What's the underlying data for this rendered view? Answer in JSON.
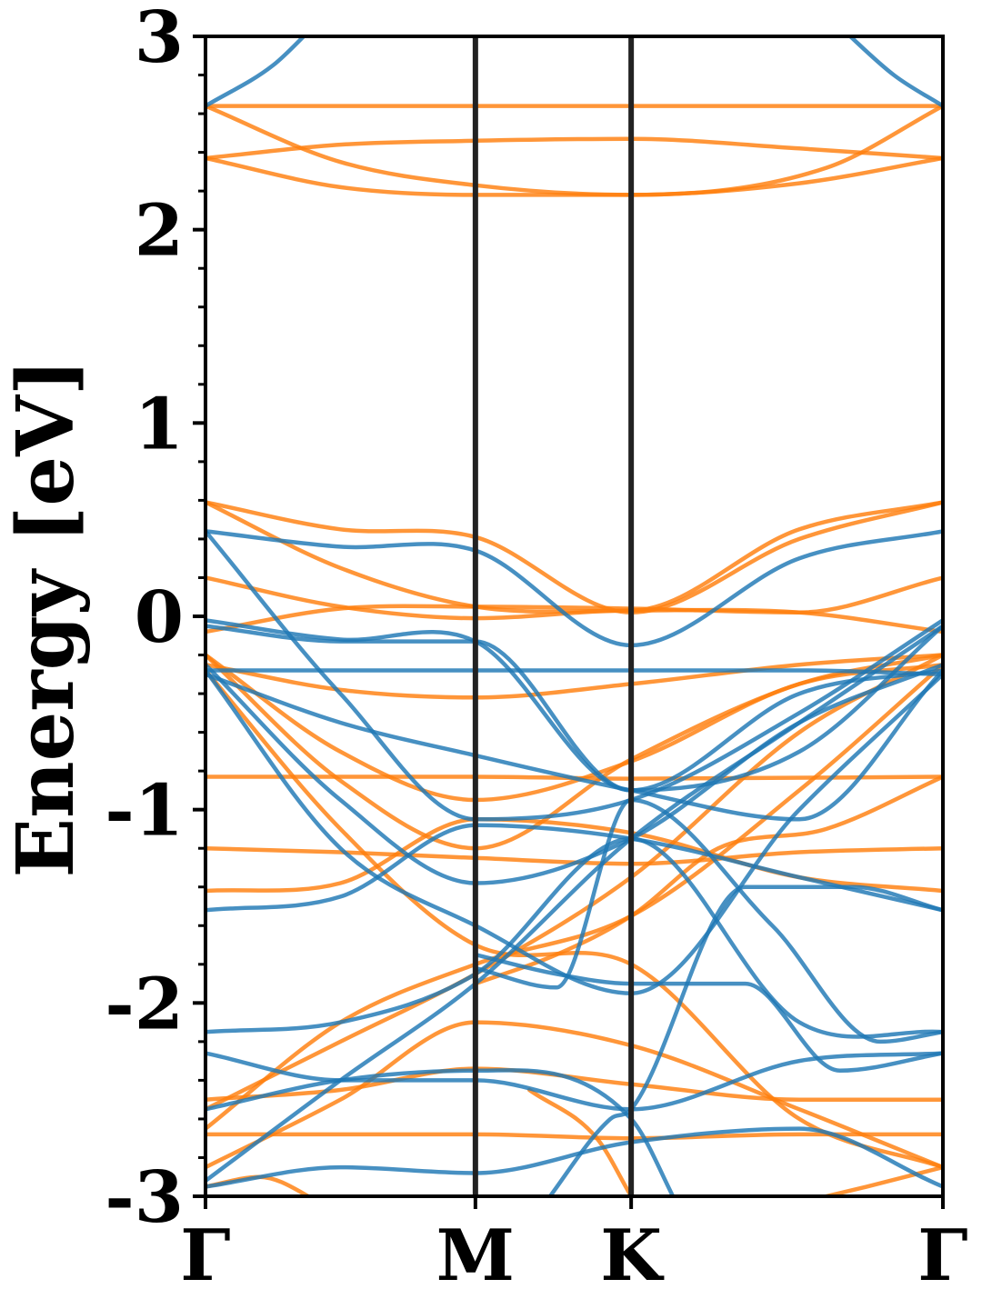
{
  "chart_data": {
    "type": "line",
    "title": "",
    "xlabel": "",
    "ylabel": "Energy [eV]",
    "ylim": [
      -3,
      3
    ],
    "y_ticks": [
      {
        "value": -3,
        "label": "-3"
      },
      {
        "value": -2,
        "label": "-2"
      },
      {
        "value": -1,
        "label": "-1"
      },
      {
        "value": 0,
        "label": "0"
      },
      {
        "value": 1,
        "label": "1"
      },
      {
        "value": 2,
        "label": "2"
      },
      {
        "value": 3,
        "label": "3"
      }
    ],
    "y_minor_step": 0.2,
    "k_points": [
      {
        "label": "Γ",
        "position": 0
      },
      {
        "label": "M",
        "position": 1.0
      },
      {
        "label": "K",
        "position": 1.577
      },
      {
        "label": "Γ",
        "position": 2.732
      }
    ],
    "colors": {
      "set_a": "#1f77b4",
      "set_b": "#ff7f0e",
      "vline": "#222222",
      "axis": "#000000"
    },
    "grid": false,
    "legend": "none",
    "series": [
      {
        "group": "set_b",
        "values": [
          [
            0,
            2.64
          ],
          [
            1,
            2.64
          ],
          [
            1.577,
            2.64
          ],
          [
            2.732,
            2.64
          ]
        ]
      },
      {
        "group": "set_b",
        "values": [
          [
            0,
            2.37
          ],
          [
            0.5,
            2.44
          ],
          [
            1,
            2.46
          ],
          [
            1.577,
            2.47
          ],
          [
            2.2,
            2.42
          ],
          [
            2.732,
            2.37
          ]
        ]
      },
      {
        "group": "set_b",
        "values": [
          [
            0,
            2.64
          ],
          [
            0.5,
            2.35
          ],
          [
            1,
            2.23
          ],
          [
            1.577,
            2.18
          ],
          [
            2.3,
            2.32
          ],
          [
            2.732,
            2.64
          ]
        ]
      },
      {
        "group": "set_b",
        "values": [
          [
            0,
            2.37
          ],
          [
            0.5,
            2.22
          ],
          [
            1,
            2.18
          ],
          [
            1.577,
            2.18
          ],
          [
            2.2,
            2.24
          ],
          [
            2.732,
            2.37
          ]
        ]
      },
      {
        "group": "set_a",
        "values": [
          [
            0,
            2.64
          ],
          [
            0.25,
            2.85
          ],
          [
            0.4,
            3.05
          ]
        ]
      },
      {
        "group": "set_a",
        "values": [
          [
            2.35,
            3.05
          ],
          [
            2.55,
            2.8
          ],
          [
            2.732,
            2.64
          ]
        ]
      },
      {
        "group": "set_b",
        "values": [
          [
            0,
            0.59
          ],
          [
            0.5,
            0.45
          ],
          [
            1,
            0.41
          ],
          [
            1.577,
            0.02
          ],
          [
            2.2,
            0.4
          ],
          [
            2.732,
            0.59
          ]
        ]
      },
      {
        "group": "set_b",
        "values": [
          [
            0,
            0.59
          ],
          [
            0.5,
            0.25
          ],
          [
            1,
            0.05
          ],
          [
            1.577,
            0.03
          ],
          [
            2.2,
            0.45
          ],
          [
            2.732,
            0.59
          ]
        ]
      },
      {
        "group": "set_b",
        "values": [
          [
            0,
            0.2
          ],
          [
            0.5,
            0.05
          ],
          [
            1,
            -0.01
          ],
          [
            1.577,
            0.03
          ],
          [
            2.2,
            0.02
          ],
          [
            2.732,
            -0.08
          ]
        ]
      },
      {
        "group": "set_b",
        "values": [
          [
            0,
            -0.08
          ],
          [
            0.5,
            0.04
          ],
          [
            1,
            0.05
          ],
          [
            1.577,
            0.04
          ],
          [
            2.2,
            0.02
          ],
          [
            2.732,
            0.2
          ]
        ]
      },
      {
        "group": "set_b",
        "values": [
          [
            0,
            -0.25
          ],
          [
            0.5,
            -0.38
          ],
          [
            1,
            -0.42
          ],
          [
            1.577,
            -0.35
          ],
          [
            2.2,
            -0.25
          ],
          [
            2.732,
            -0.2
          ]
        ]
      },
      {
        "group": "set_b",
        "values": [
          [
            0,
            -0.2
          ],
          [
            0.5,
            -0.7
          ],
          [
            1,
            -0.95
          ],
          [
            1.577,
            -0.75
          ],
          [
            2.2,
            -0.35
          ],
          [
            2.732,
            -0.25
          ]
        ]
      },
      {
        "group": "set_b",
        "values": [
          [
            0,
            -0.83
          ],
          [
            1,
            -0.83
          ],
          [
            1.577,
            -0.84
          ],
          [
            2.732,
            -0.83
          ]
        ]
      },
      {
        "group": "set_b",
        "values": [
          [
            0,
            -1.2
          ],
          [
            0.5,
            -1.22
          ],
          [
            1,
            -1.25
          ],
          [
            1.577,
            -1.28
          ],
          [
            2.2,
            -1.22
          ],
          [
            2.732,
            -1.2
          ]
        ]
      },
      {
        "group": "set_b",
        "values": [
          [
            0,
            -1.42
          ],
          [
            0.5,
            -1.38
          ],
          [
            1,
            -1.05
          ],
          [
            1.577,
            -1.12
          ],
          [
            2.2,
            -1.35
          ],
          [
            2.732,
            -1.42
          ]
        ]
      },
      {
        "group": "set_b",
        "values": [
          [
            0,
            -2.55
          ],
          [
            0.5,
            -2.2
          ],
          [
            1,
            -1.85
          ],
          [
            1.577,
            -1.35
          ],
          [
            2.2,
            -0.6
          ],
          [
            2.732,
            -0.2
          ]
        ]
      },
      {
        "group": "set_b",
        "values": [
          [
            0,
            -2.68
          ],
          [
            0.5,
            -2.68
          ],
          [
            1,
            -2.68
          ],
          [
            1.577,
            -2.7
          ],
          [
            2.2,
            -2.68
          ],
          [
            2.732,
            -2.68
          ]
        ]
      },
      {
        "group": "set_b",
        "values": [
          [
            0,
            -2.5
          ],
          [
            0.5,
            -2.45
          ],
          [
            1,
            -2.34
          ],
          [
            1.577,
            -2.42
          ],
          [
            2.2,
            -2.5
          ],
          [
            2.732,
            -2.5
          ]
        ]
      },
      {
        "group": "set_b",
        "values": [
          [
            0,
            -2.85
          ],
          [
            0.5,
            -2.5
          ],
          [
            1,
            -2.1
          ],
          [
            1.577,
            -2.22
          ],
          [
            2.2,
            -2.55
          ],
          [
            2.732,
            -2.85
          ]
        ]
      },
      {
        "group": "set_b",
        "values": [
          [
            0,
            -2.65
          ],
          [
            0.5,
            -2.1
          ],
          [
            1,
            -1.8
          ],
          [
            1.577,
            -1.55
          ],
          [
            2.2,
            -0.9
          ],
          [
            2.732,
            -0.25
          ]
        ]
      },
      {
        "group": "set_b",
        "values": [
          [
            0,
            -0.28
          ],
          [
            0.5,
            -1.1
          ],
          [
            1,
            -1.7
          ],
          [
            1.577,
            -1.8
          ],
          [
            2.2,
            -2.6
          ],
          [
            2.732,
            -2.85
          ]
        ]
      },
      {
        "group": "set_b",
        "values": [
          [
            0,
            -0.2
          ],
          [
            0.5,
            -0.85
          ],
          [
            1,
            -1.2
          ],
          [
            1.577,
            -0.74
          ],
          [
            2.2,
            -0.35
          ],
          [
            2.732,
            -0.2
          ]
        ]
      },
      {
        "group": "set_b",
        "values": [
          [
            0,
            -2.95
          ],
          [
            0.2,
            -2.9
          ],
          [
            0.45,
            -3.05
          ]
        ]
      },
      {
        "group": "set_b",
        "values": [
          [
            1.577,
            -3.0
          ],
          [
            1.45,
            -2.7
          ],
          [
            1.2,
            -2.45
          ]
        ]
      },
      {
        "group": "set_b",
        "values": [
          [
            2.15,
            -3.05
          ],
          [
            2.45,
            -2.95
          ],
          [
            2.732,
            -2.85
          ]
        ]
      },
      {
        "group": "set_b",
        "values": [
          [
            1.0,
            -1.9
          ],
          [
            1.3,
            -1.75
          ],
          [
            1.577,
            -1.55
          ],
          [
            1.9,
            -1.2
          ],
          [
            2.3,
            -1.1
          ],
          [
            2.732,
            -0.83
          ]
        ]
      },
      {
        "group": "set_a",
        "values": [
          [
            0,
            0.44
          ],
          [
            0.5,
            0.36
          ],
          [
            1,
            0.34
          ],
          [
            1.577,
            -0.15
          ],
          [
            2.2,
            0.3
          ],
          [
            2.732,
            0.44
          ]
        ]
      },
      {
        "group": "set_a",
        "values": [
          [
            0,
            0.44
          ],
          [
            0.5,
            -0.4
          ],
          [
            1,
            -1.05
          ],
          [
            1.577,
            -0.95
          ],
          [
            2.2,
            -0.5
          ],
          [
            2.732,
            -0.02
          ]
        ]
      },
      {
        "group": "set_a",
        "values": [
          [
            0,
            -0.02
          ],
          [
            0.5,
            -0.12
          ],
          [
            1,
            -0.13
          ],
          [
            1.577,
            -0.9
          ],
          [
            2.2,
            -0.7
          ],
          [
            2.732,
            -0.05
          ]
        ]
      },
      {
        "group": "set_a",
        "values": [
          [
            0,
            -0.05
          ],
          [
            0.5,
            -0.13
          ],
          [
            1,
            -0.13
          ],
          [
            1.577,
            -0.9
          ],
          [
            2.2,
            -0.4
          ],
          [
            2.732,
            -0.28
          ]
        ]
      },
      {
        "group": "set_a",
        "values": [
          [
            0,
            -0.28
          ],
          [
            0.5,
            -0.28
          ],
          [
            1,
            -0.28
          ],
          [
            1.577,
            -0.28
          ],
          [
            2.2,
            -0.28
          ],
          [
            2.732,
            -0.3
          ]
        ]
      },
      {
        "group": "set_a",
        "values": [
          [
            0,
            -0.3
          ],
          [
            0.5,
            -0.55
          ],
          [
            1,
            -0.72
          ],
          [
            1.577,
            -0.9
          ],
          [
            2.2,
            -1.05
          ],
          [
            2.732,
            -0.28
          ]
        ]
      },
      {
        "group": "set_a",
        "values": [
          [
            0,
            -0.25
          ],
          [
            0.5,
            -0.95
          ],
          [
            1,
            -1.38
          ],
          [
            1.577,
            -1.15
          ],
          [
            2.2,
            -0.55
          ],
          [
            2.732,
            -0.25
          ]
        ]
      },
      {
        "group": "set_a",
        "values": [
          [
            0,
            -0.28
          ],
          [
            0.5,
            -1.2
          ],
          [
            1,
            -1.6
          ],
          [
            1.577,
            -1.95
          ],
          [
            2.2,
            -1.0
          ],
          [
            2.732,
            -0.3
          ]
        ]
      },
      {
        "group": "set_a",
        "values": [
          [
            0,
            -1.52
          ],
          [
            0.5,
            -1.45
          ],
          [
            1,
            -1.08
          ],
          [
            1.577,
            -1.15
          ],
          [
            2.2,
            -1.35
          ],
          [
            2.732,
            -1.52
          ]
        ]
      },
      {
        "group": "set_a",
        "values": [
          [
            0,
            -2.15
          ],
          [
            0.5,
            -2.1
          ],
          [
            1,
            -1.85
          ],
          [
            1.577,
            -1.15
          ],
          [
            2.2,
            -2.1
          ],
          [
            2.732,
            -2.15
          ]
        ]
      },
      {
        "group": "set_a",
        "values": [
          [
            0,
            -2.26
          ],
          [
            0.5,
            -2.4
          ],
          [
            1,
            -2.4
          ],
          [
            1.577,
            -2.55
          ],
          [
            2.2,
            -2.3
          ],
          [
            2.732,
            -2.26
          ]
        ]
      },
      {
        "group": "set_a",
        "values": [
          [
            0,
            -2.95
          ],
          [
            0.5,
            -2.85
          ],
          [
            1,
            -2.88
          ],
          [
            1.577,
            -2.72
          ],
          [
            2.2,
            -2.65
          ],
          [
            2.732,
            -2.95
          ]
        ]
      },
      {
        "group": "set_a",
        "values": [
          [
            0,
            -2.92
          ],
          [
            0.5,
            -2.4
          ],
          [
            1,
            -1.9
          ],
          [
            1.577,
            -1.15
          ],
          [
            2.2,
            -0.55
          ],
          [
            2.732,
            -0.05
          ]
        ]
      },
      {
        "group": "set_a",
        "values": [
          [
            0,
            -2.55
          ],
          [
            0.5,
            -2.4
          ],
          [
            1,
            -2.35
          ],
          [
            1.577,
            -2.6
          ],
          [
            1.75,
            -3.05
          ]
        ]
      },
      {
        "group": "set_a",
        "values": [
          [
            1.25,
            -3.05
          ],
          [
            1.5,
            -2.6
          ],
          [
            1.577,
            -2.55
          ],
          [
            2.0,
            -1.4
          ],
          [
            2.4,
            -1.4
          ],
          [
            2.732,
            -1.52
          ]
        ]
      },
      {
        "group": "set_a",
        "values": [
          [
            1.0,
            -1.75
          ],
          [
            1.3,
            -1.85
          ],
          [
            1.577,
            -1.9
          ],
          [
            2.0,
            -1.9
          ],
          [
            2.35,
            -2.35
          ],
          [
            2.732,
            -2.26
          ]
        ]
      },
      {
        "group": "set_a",
        "values": [
          [
            1.0,
            -1.82
          ],
          [
            1.3,
            -1.92
          ],
          [
            1.577,
            -0.95
          ],
          [
            2.1,
            -1.6
          ],
          [
            2.5,
            -2.2
          ],
          [
            2.732,
            -2.15
          ]
        ]
      }
    ]
  }
}
